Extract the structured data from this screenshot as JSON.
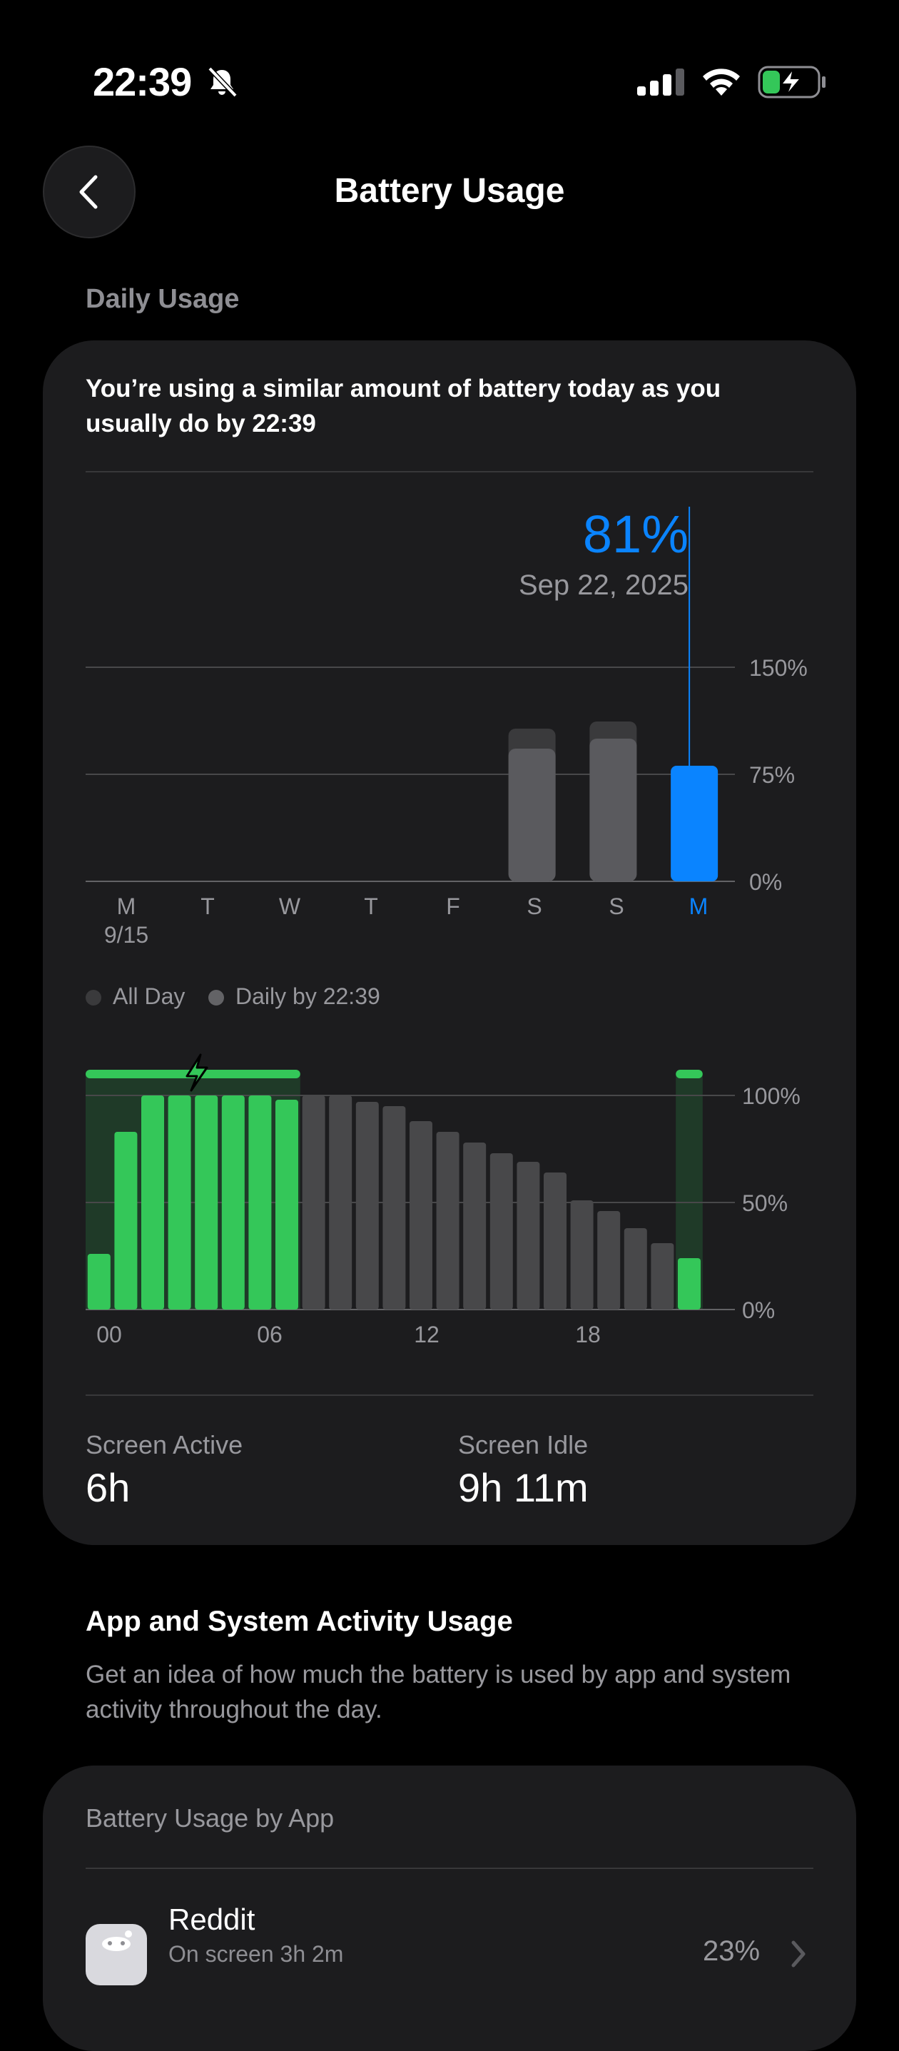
{
  "status_bar": {
    "time": "22:39"
  },
  "nav": {
    "title": "Battery Usage"
  },
  "daily_usage": {
    "section_label": "Daily Usage",
    "summary": "You’re using a similar amount of battery today as you usually do by 22:39",
    "selected": {
      "percent": "81%",
      "date": "Sep 22, 2025"
    },
    "legend": {
      "all_day": "All Day",
      "daily_by": "Daily by 22:39"
    },
    "stats": {
      "screen_active_label": "Screen Active",
      "screen_active_value": "6h",
      "screen_idle_label": "Screen Idle",
      "screen_idle_value": "9h 11m"
    }
  },
  "chart_data": [
    {
      "type": "bar",
      "categories": [
        "M",
        "T",
        "W",
        "T",
        "F",
        "S",
        "S",
        "M"
      ],
      "first_category_sublabel": "9/15",
      "selected_index": 7,
      "series": [
        {
          "name": "All Day",
          "values": [
            0,
            0,
            0,
            0,
            0,
            107,
            112,
            81
          ]
        },
        {
          "name": "Daily by 22:39",
          "values": [
            0,
            0,
            0,
            0,
            0,
            93,
            100,
            81
          ]
        }
      ],
      "yticks": [
        "0%",
        "75%",
        "150%"
      ],
      "ylim": [
        0,
        150
      ],
      "colors": {
        "selected": "#0a84ff",
        "all_day": "#3a3a3c",
        "daily_by": "#5a5a5e"
      }
    },
    {
      "type": "bar",
      "x": [
        0,
        1,
        2,
        3,
        4,
        5,
        6,
        7,
        8,
        9,
        10,
        11,
        12,
        13,
        14,
        15,
        16,
        17,
        18,
        19,
        20,
        21,
        22
      ],
      "xticks": [
        "00",
        "06",
        "12",
        "18"
      ],
      "values": [
        26,
        83,
        100,
        100,
        100,
        100,
        100,
        98,
        100,
        100,
        97,
        95,
        88,
        83,
        78,
        73,
        69,
        64,
        51,
        46,
        38,
        31,
        24
      ],
      "charging_hours": [
        0,
        1,
        2,
        3,
        4,
        5,
        6,
        7,
        22
      ],
      "charging_ranges": [
        [
          0,
          8
        ],
        [
          22,
          23
        ]
      ],
      "yticks": [
        "0%",
        "50%",
        "100%"
      ],
      "ylim": [
        0,
        100
      ],
      "colors": {
        "charging": "#34c759",
        "normal": "#48484a"
      }
    }
  ],
  "activity": {
    "title": "App and System Activity Usage",
    "description": "Get an idea of how much the battery is used by app and system activity throughout the day."
  },
  "app_usage": {
    "label": "Battery Usage by App",
    "apps": [
      {
        "name": "Reddit",
        "subtitle": "On screen 3h 2m",
        "percent": "23%"
      }
    ]
  }
}
